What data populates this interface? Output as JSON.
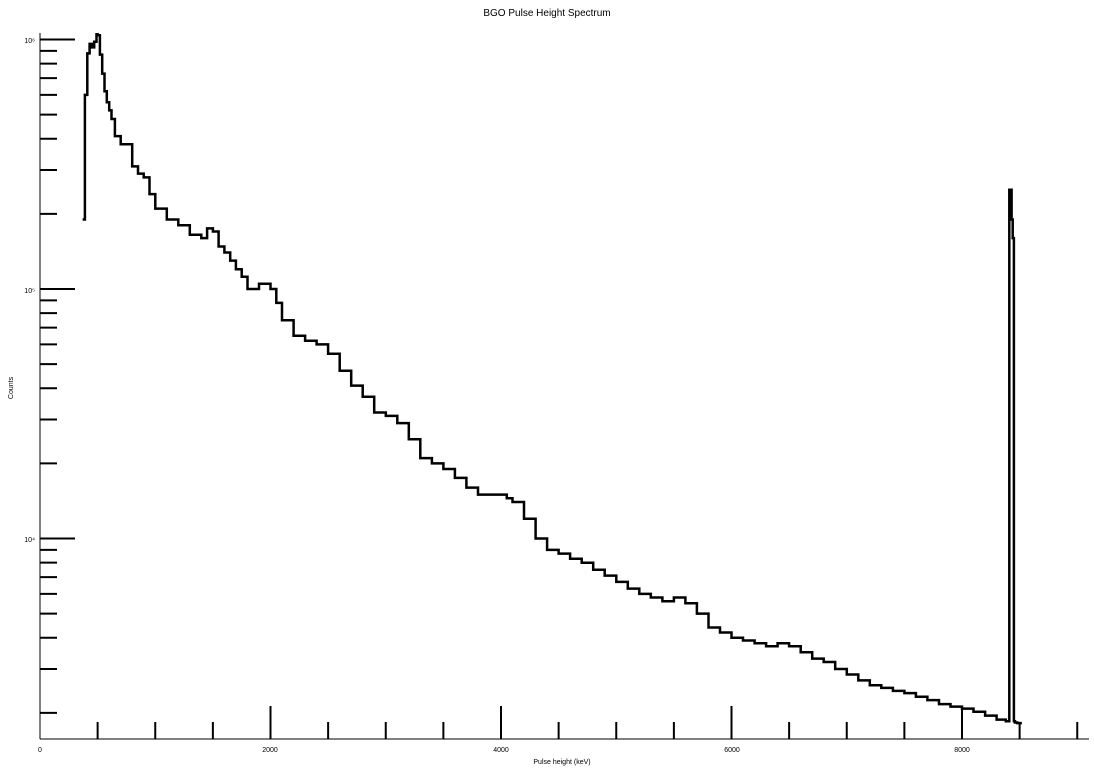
{
  "chart_data": {
    "type": "line",
    "title": "BGO Pulse Height Spectrum",
    "xlabel": "Pulse height (keV)",
    "ylabel": "Counts",
    "xlim": [
      0,
      9000
    ],
    "ylim": [
      1800,
      1050000
    ],
    "yscale": "log",
    "grid": false,
    "x_ticks": [
      {
        "value": 0,
        "label": "0"
      },
      {
        "value": 2000,
        "label": "2000"
      },
      {
        "value": 4000,
        "label": "4000"
      },
      {
        "value": 6000,
        "label": "6000"
      },
      {
        "value": 8000,
        "label": "8000"
      }
    ],
    "y_ticks": [
      {
        "value": 10000,
        "label": "10⁴"
      },
      {
        "value": 100000,
        "label": "10⁵"
      },
      {
        "value": 1000000,
        "label": "10⁶"
      }
    ],
    "series": [
      {
        "x": [
          370,
          390,
          410,
          430,
          450,
          470,
          490,
          500,
          520,
          540,
          560,
          580,
          600,
          620,
          650,
          700,
          750,
          800,
          850,
          900,
          950,
          1000,
          1100,
          1200,
          1300,
          1400,
          1450,
          1500,
          1550,
          1600,
          1650,
          1700,
          1750,
          1800,
          1850,
          1900,
          1950,
          2000,
          2050,
          2100,
          2200,
          2300,
          2400,
          2500,
          2600,
          2700,
          2800,
          2900,
          3000,
          3100,
          3200,
          3300,
          3400,
          3500,
          3600,
          3700,
          3800,
          3900,
          4000,
          4050,
          4100,
          4200,
          4300,
          4400,
          4500,
          4600,
          4700,
          4800,
          4900,
          5000,
          5100,
          5200,
          5300,
          5400,
          5500,
          5600,
          5700,
          5800,
          5900,
          6000,
          6100,
          6200,
          6300,
          6400,
          6500,
          6600,
          6700,
          6800,
          6900,
          7000,
          7100,
          7200,
          7300,
          7400,
          7500,
          7600,
          7700,
          7800,
          7900,
          8000,
          8100,
          8200,
          8300,
          8380,
          8410,
          8420,
          8430,
          8440,
          8450,
          8460,
          8480,
          8520
        ],
        "y": [
          190000,
          600000,
          880000,
          960000,
          930000,
          980000,
          1050000,
          1040000,
          870000,
          730000,
          620000,
          560000,
          520000,
          480000,
          410000,
          380000,
          380000,
          310000,
          290000,
          280000,
          240000,
          210000,
          190000,
          180000,
          165000,
          160000,
          175000,
          170000,
          148000,
          140000,
          130000,
          120000,
          112000,
          100000,
          100000,
          105000,
          105000,
          100000,
          88000,
          75000,
          65000,
          62000,
          60000,
          55000,
          47000,
          41000,
          37000,
          32000,
          31000,
          29000,
          25000,
          21000,
          20000,
          19000,
          17500,
          16000,
          15000,
          15000,
          15000,
          14500,
          14000,
          12000,
          10000,
          9000,
          8700,
          8300,
          8000,
          7500,
          7100,
          6700,
          6300,
          6000,
          5800,
          5600,
          5800,
          5500,
          5000,
          4400,
          4200,
          4000,
          3900,
          3800,
          3700,
          3800,
          3700,
          3500,
          3300,
          3200,
          3000,
          2850,
          2700,
          2580,
          2520,
          2450,
          2400,
          2320,
          2250,
          2170,
          2120,
          2080,
          2020,
          1950,
          1880,
          1850,
          250000,
          250000,
          190000,
          160000,
          1850,
          1830,
          1820,
          1820
        ]
      }
    ]
  }
}
